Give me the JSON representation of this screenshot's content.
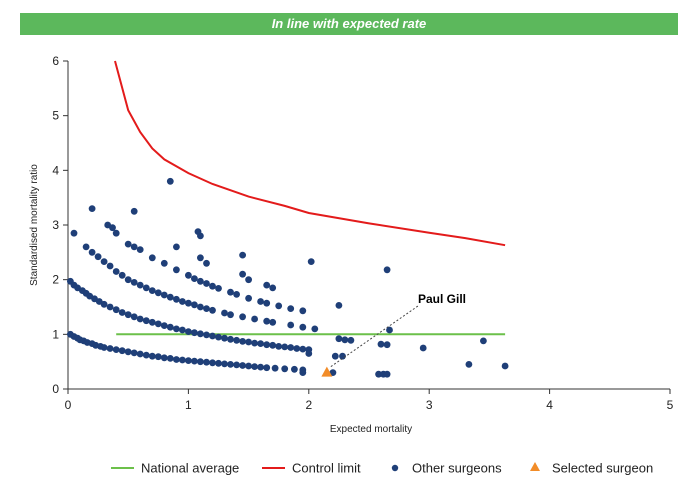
{
  "banner": {
    "title": "In line with expected rate",
    "color": "#5cb85c"
  },
  "chart_data": {
    "type": "scatter",
    "title": "In line with expected rate",
    "xlabel": "Expected mortality",
    "ylabel": "Standardised mortality ratio",
    "xlim": [
      0,
      5
    ],
    "ylim": [
      0,
      6
    ],
    "xticks": [
      "0",
      "1",
      "2",
      "3",
      "4",
      "5"
    ],
    "yticks": [
      "0",
      "1",
      "2",
      "3",
      "4",
      "5",
      "6"
    ],
    "grid": false,
    "legend_position": "bottom",
    "series": [
      {
        "name": "National average",
        "kind": "line",
        "color": "#6cc04a",
        "points": [
          [
            0.4,
            1.0
          ],
          [
            3.63,
            1.0
          ]
        ]
      },
      {
        "name": "Control limit",
        "kind": "line",
        "color": "#e31b1b",
        "points": [
          [
            0.39,
            6.0
          ],
          [
            0.5,
            5.1
          ],
          [
            0.6,
            4.7
          ],
          [
            0.7,
            4.4
          ],
          [
            0.8,
            4.2
          ],
          [
            1.0,
            3.95
          ],
          [
            1.2,
            3.75
          ],
          [
            1.5,
            3.52
          ],
          [
            1.8,
            3.35
          ],
          [
            2.0,
            3.22
          ],
          [
            2.5,
            3.03
          ],
          [
            3.0,
            2.86
          ],
          [
            3.3,
            2.76
          ],
          [
            3.63,
            2.63
          ]
        ]
      },
      {
        "name": "Other surgeons",
        "kind": "scatter",
        "color": "#1f3f78",
        "points": [
          [
            0.02,
            1.0
          ],
          [
            0.05,
            0.96
          ],
          [
            0.08,
            0.93
          ],
          [
            0.1,
            0.9
          ],
          [
            0.13,
            0.88
          ],
          [
            0.16,
            0.85
          ],
          [
            0.2,
            0.83
          ],
          [
            0.23,
            0.8
          ],
          [
            0.27,
            0.78
          ],
          [
            0.3,
            0.76
          ],
          [
            0.35,
            0.74
          ],
          [
            0.4,
            0.72
          ],
          [
            0.45,
            0.7
          ],
          [
            0.5,
            0.68
          ],
          [
            0.55,
            0.66
          ],
          [
            0.6,
            0.64
          ],
          [
            0.65,
            0.62
          ],
          [
            0.7,
            0.6
          ],
          [
            0.75,
            0.59
          ],
          [
            0.8,
            0.57
          ],
          [
            0.85,
            0.56
          ],
          [
            0.9,
            0.54
          ],
          [
            0.95,
            0.53
          ],
          [
            1.0,
            0.52
          ],
          [
            1.05,
            0.51
          ],
          [
            1.1,
            0.5
          ],
          [
            1.15,
            0.49
          ],
          [
            1.2,
            0.48
          ],
          [
            1.25,
            0.47
          ],
          [
            1.3,
            0.46
          ],
          [
            1.35,
            0.45
          ],
          [
            1.4,
            0.44
          ],
          [
            1.45,
            0.43
          ],
          [
            1.5,
            0.42
          ],
          [
            1.55,
            0.41
          ],
          [
            1.6,
            0.4
          ],
          [
            1.65,
            0.39
          ],
          [
            1.72,
            0.38
          ],
          [
            1.8,
            0.37
          ],
          [
            1.88,
            0.36
          ],
          [
            1.95,
            0.35
          ],
          [
            0.02,
            1.97
          ],
          [
            0.05,
            1.9
          ],
          [
            0.08,
            1.85
          ],
          [
            0.12,
            1.8
          ],
          [
            0.15,
            1.75
          ],
          [
            0.18,
            1.7
          ],
          [
            0.22,
            1.65
          ],
          [
            0.26,
            1.6
          ],
          [
            0.3,
            1.55
          ],
          [
            0.35,
            1.5
          ],
          [
            0.4,
            1.45
          ],
          [
            0.45,
            1.4
          ],
          [
            0.5,
            1.36
          ],
          [
            0.55,
            1.32
          ],
          [
            0.6,
            1.28
          ],
          [
            0.65,
            1.25
          ],
          [
            0.7,
            1.22
          ],
          [
            0.75,
            1.19
          ],
          [
            0.8,
            1.16
          ],
          [
            0.85,
            1.13
          ],
          [
            0.9,
            1.1
          ],
          [
            0.95,
            1.08
          ],
          [
            1.0,
            1.05
          ],
          [
            1.05,
            1.03
          ],
          [
            1.1,
            1.01
          ],
          [
            1.15,
            0.99
          ],
          [
            1.2,
            0.97
          ],
          [
            1.25,
            0.95
          ],
          [
            1.3,
            0.93
          ],
          [
            1.35,
            0.91
          ],
          [
            1.4,
            0.89
          ],
          [
            1.45,
            0.87
          ],
          [
            1.5,
            0.86
          ],
          [
            1.55,
            0.84
          ],
          [
            1.6,
            0.83
          ],
          [
            1.65,
            0.81
          ],
          [
            1.7,
            0.8
          ],
          [
            1.75,
            0.78
          ],
          [
            1.8,
            0.77
          ],
          [
            1.85,
            0.76
          ],
          [
            1.9,
            0.74
          ],
          [
            1.95,
            0.73
          ],
          [
            2.0,
            0.72
          ],
          [
            0.15,
            2.6
          ],
          [
            0.2,
            2.5
          ],
          [
            0.25,
            2.42
          ],
          [
            0.3,
            2.33
          ],
          [
            0.35,
            2.25
          ],
          [
            0.4,
            2.15
          ],
          [
            0.45,
            2.08
          ],
          [
            0.5,
            2.0
          ],
          [
            0.55,
            1.95
          ],
          [
            0.6,
            1.9
          ],
          [
            0.65,
            1.85
          ],
          [
            0.7,
            1.8
          ],
          [
            0.75,
            1.76
          ],
          [
            0.8,
            1.72
          ],
          [
            0.85,
            1.68
          ],
          [
            0.9,
            1.64
          ],
          [
            0.95,
            1.6
          ],
          [
            1.0,
            1.57
          ],
          [
            1.05,
            1.54
          ],
          [
            1.1,
            1.5
          ],
          [
            1.15,
            1.47
          ],
          [
            1.2,
            1.44
          ],
          [
            1.3,
            1.39
          ],
          [
            1.35,
            1.36
          ],
          [
            1.45,
            1.32
          ],
          [
            1.55,
            1.28
          ],
          [
            1.65,
            1.24
          ],
          [
            1.7,
            1.22
          ],
          [
            1.85,
            1.17
          ],
          [
            1.95,
            1.13
          ],
          [
            2.05,
            1.1
          ],
          [
            0.5,
            2.65
          ],
          [
            0.55,
            2.6
          ],
          [
            0.6,
            2.55
          ],
          [
            0.7,
            2.4
          ],
          [
            0.8,
            2.3
          ],
          [
            0.9,
            2.18
          ],
          [
            1.0,
            2.08
          ],
          [
            1.05,
            2.02
          ],
          [
            1.1,
            1.97
          ],
          [
            1.15,
            1.93
          ],
          [
            1.2,
            1.88
          ],
          [
            1.25,
            1.84
          ],
          [
            1.35,
            1.77
          ],
          [
            1.4,
            1.73
          ],
          [
            1.5,
            1.66
          ],
          [
            1.6,
            1.6
          ],
          [
            1.65,
            1.57
          ],
          [
            1.75,
            1.52
          ],
          [
            1.85,
            1.47
          ],
          [
            1.95,
            1.43
          ],
          [
            0.33,
            3.0
          ],
          [
            0.37,
            2.95
          ],
          [
            0.4,
            2.85
          ],
          [
            0.9,
            2.6
          ],
          [
            1.1,
            2.8
          ],
          [
            1.45,
            2.45
          ],
          [
            1.1,
            2.4
          ],
          [
            1.15,
            2.3
          ],
          [
            1.45,
            2.1
          ],
          [
            1.5,
            2.0
          ],
          [
            1.65,
            1.9
          ],
          [
            1.7,
            1.85
          ],
          [
            0.05,
            2.85
          ],
          [
            0.2,
            3.3
          ],
          [
            0.55,
            3.25
          ],
          [
            0.85,
            3.8
          ],
          [
            1.08,
            2.88
          ],
          [
            2.02,
            2.33
          ],
          [
            2.25,
            1.53
          ],
          [
            2.65,
            2.18
          ],
          [
            2.67,
            1.08
          ],
          [
            2.25,
            0.92
          ],
          [
            2.3,
            0.9
          ],
          [
            2.35,
            0.89
          ],
          [
            2.22,
            0.6
          ],
          [
            2.28,
            0.6
          ],
          [
            2.6,
            0.82
          ],
          [
            2.65,
            0.81
          ],
          [
            2.95,
            0.75
          ],
          [
            3.33,
            0.45
          ],
          [
            3.45,
            0.88
          ],
          [
            3.63,
            0.42
          ],
          [
            2.2,
            0.3
          ],
          [
            2.58,
            0.27
          ],
          [
            2.62,
            0.27
          ],
          [
            2.65,
            0.27
          ],
          [
            1.95,
            0.3
          ],
          [
            2.0,
            0.65
          ]
        ]
      },
      {
        "name": "Selected surgeon",
        "kind": "triangle",
        "color": "#f28c28",
        "points": [
          [
            2.15,
            0.3
          ]
        ]
      }
    ],
    "annotations": [
      {
        "text": "Paul Gill",
        "target": [
          2.15,
          0.3
        ]
      }
    ]
  }
}
